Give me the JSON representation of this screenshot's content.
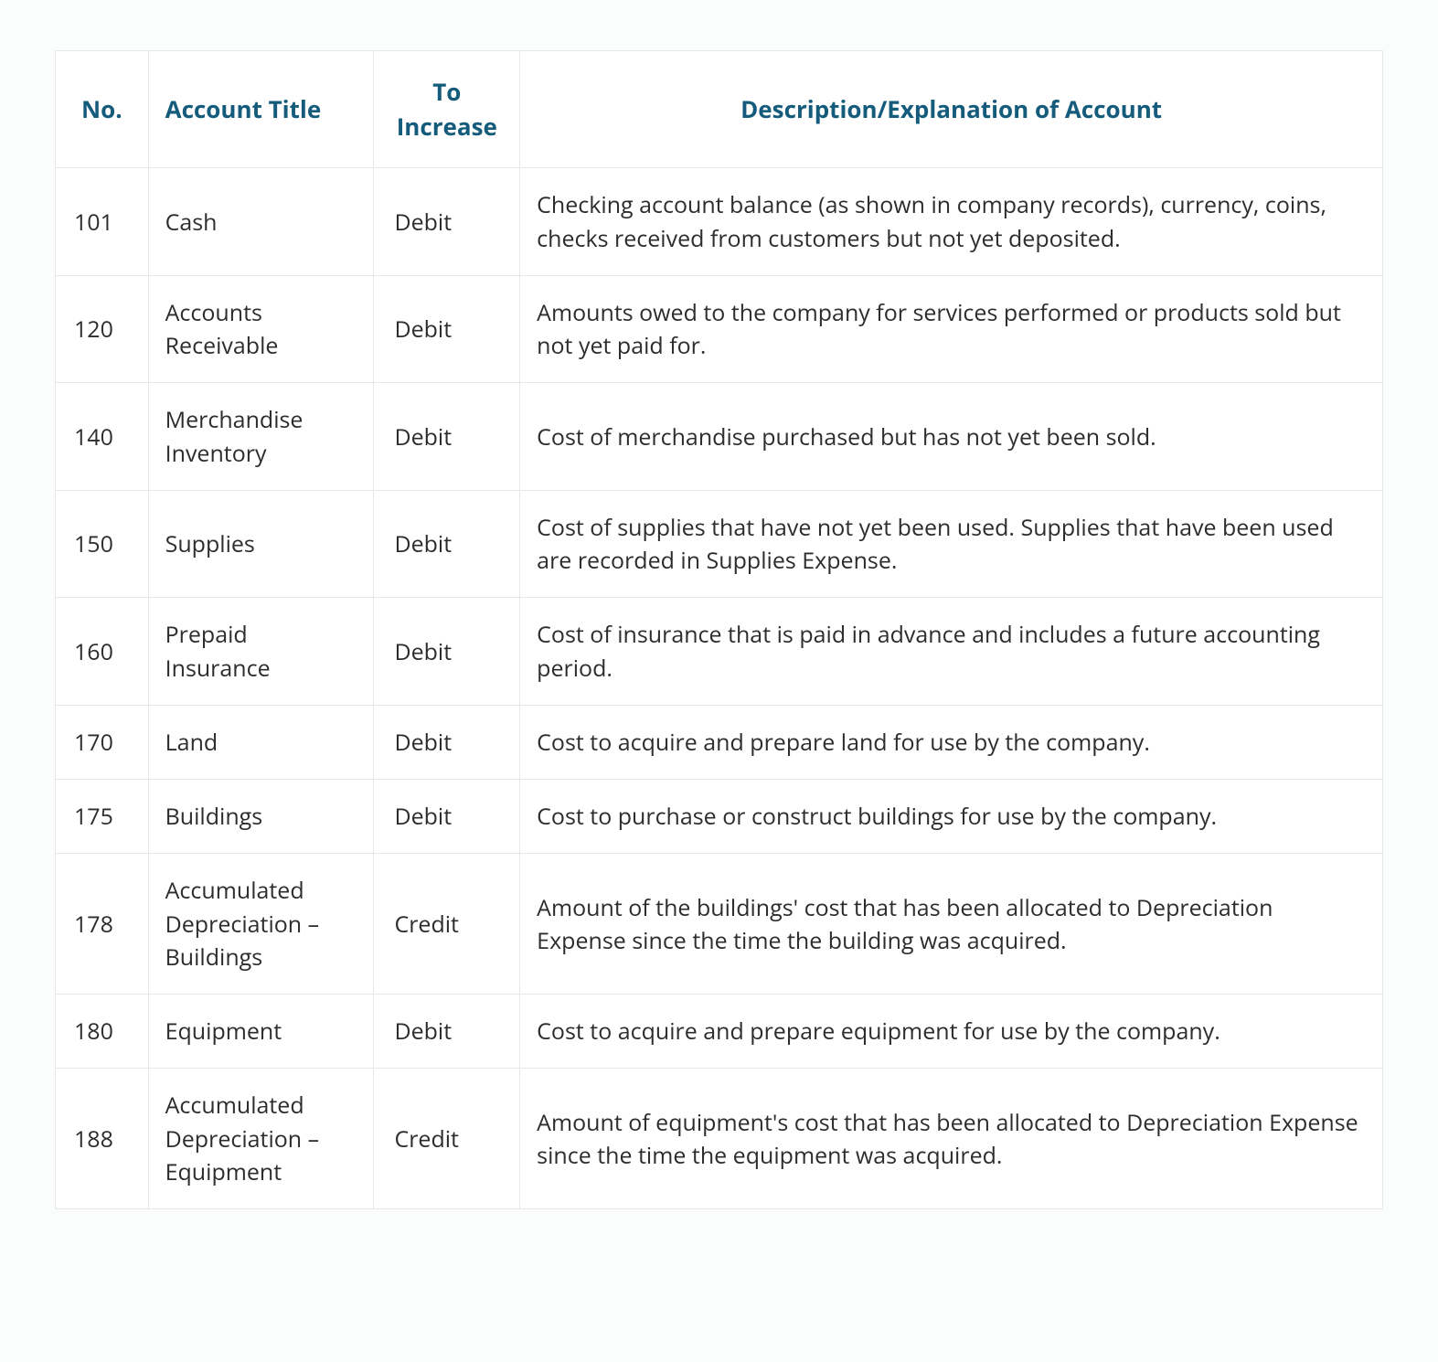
{
  "table": {
    "columns": [
      "No.",
      "Account Title",
      "To Increase",
      "Description/Explanation of Account"
    ],
    "rows": [
      {
        "no": "101",
        "title": "Cash",
        "increase": "Debit",
        "description": "Checking account balance (as shown in company records), currency, coins, checks received from customers but not yet deposited."
      },
      {
        "no": "120",
        "title": "Accounts Receivable",
        "increase": "Debit",
        "description": "Amounts owed to the company for services performed or products sold but not yet paid for."
      },
      {
        "no": "140",
        "title": "Merchandise Inventory",
        "increase": "Debit",
        "description": "Cost of merchandise purchased but has not yet been sold."
      },
      {
        "no": "150",
        "title": "Supplies",
        "increase": "Debit",
        "description": "Cost of supplies that have not yet been used. Supplies that have been used are recorded in Supplies Expense."
      },
      {
        "no": "160",
        "title": "Prepaid Insurance",
        "increase": "Debit",
        "description": "Cost of insurance that is paid in advance and includes a future accounting period."
      },
      {
        "no": "170",
        "title": "Land",
        "increase": "Debit",
        "description": "Cost to acquire and prepare land for use by the company."
      },
      {
        "no": "175",
        "title": "Buildings",
        "increase": "Debit",
        "description": "Cost to purchase or construct buildings for use by the company."
      },
      {
        "no": "178",
        "title": "Accumulated Depreciation – Buildings",
        "increase": "Credit",
        "description": "Amount of the buildings' cost that has been allocated to Depreciation Expense since the time the building was acquired."
      },
      {
        "no": "180",
        "title": "Equipment",
        "increase": "Debit",
        "description": "Cost to acquire and prepare equipment for use by the company."
      },
      {
        "no": "188",
        "title": "Accumulated Depreciation – Equipment",
        "increase": "Credit",
        "description": "Amount of equipment's cost that has been allocated to Depreciation Expense since the time the equipment was acquired."
      }
    ],
    "styling": {
      "header_color": "#155b7b",
      "border_color": "#e5e7e8",
      "background_color": "#ffffff",
      "page_background": "#fbfcfc",
      "text_color": "#2d2d2d",
      "header_fontsize": 26,
      "cell_fontsize": 25,
      "header_fontweight": 700,
      "column_widths_pct": [
        7,
        17,
        11,
        65
      ]
    }
  }
}
